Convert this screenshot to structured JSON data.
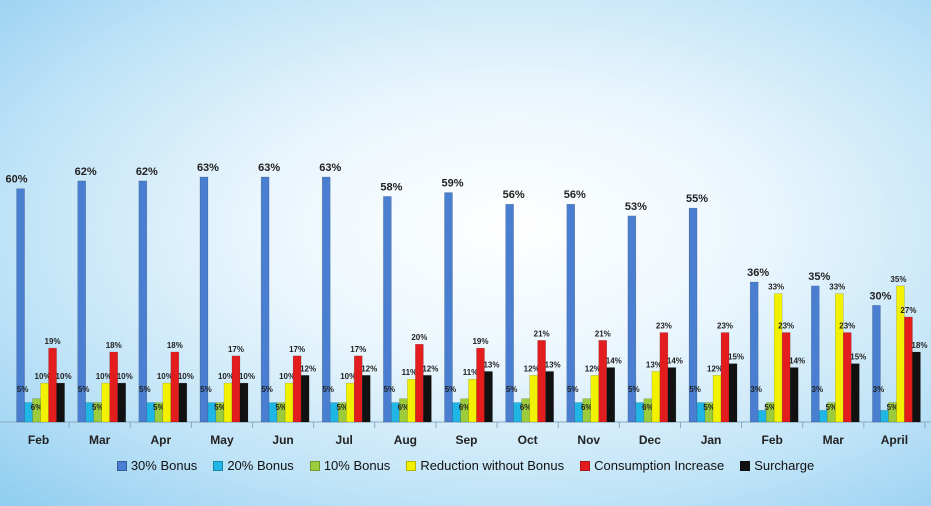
{
  "chart_data": {
    "type": "bar",
    "categories": [
      "Feb",
      "Mar",
      "Apr",
      "May",
      "Jun",
      "Jul",
      "Aug",
      "Sep",
      "Oct",
      "Nov",
      "Dec",
      "Jan",
      "Feb",
      "Mar",
      "April"
    ],
    "ylim": [
      0,
      70
    ],
    "grid": false,
    "legend_position": "bottom",
    "series": [
      {
        "name": "30% Bonus",
        "color": "#4a7ed0",
        "values": [
          60,
          62,
          62,
          63,
          63,
          63,
          58,
          59,
          56,
          56,
          53,
          55,
          36,
          35,
          30
        ]
      },
      {
        "name": "20% Bonus",
        "color": "#1fb6e6",
        "values": [
          5,
          5,
          5,
          5,
          5,
          5,
          5,
          5,
          5,
          5,
          5,
          5,
          3,
          3,
          3
        ]
      },
      {
        "name": "10% Bonus",
        "color": "#9ccc3c",
        "values": [
          6,
          5,
          5,
          5,
          5,
          5,
          6,
          6,
          6,
          6,
          6,
          5,
          5,
          5,
          5
        ]
      },
      {
        "name": "Reduction without Bonus",
        "color": "#f2f200",
        "values": [
          10,
          10,
          10,
          10,
          10,
          10,
          11,
          11,
          12,
          12,
          13,
          12,
          33,
          33,
          35
        ]
      },
      {
        "name": "Consumption Increase",
        "color": "#e31d1d",
        "values": [
          19,
          18,
          18,
          17,
          17,
          17,
          20,
          19,
          21,
          21,
          23,
          23,
          23,
          23,
          27
        ]
      },
      {
        "name": "Surcharge",
        "color": "#111111",
        "values": [
          10,
          10,
          10,
          10,
          12,
          12,
          12,
          13,
          13,
          14,
          14,
          15,
          14,
          15,
          18
        ]
      }
    ],
    "value_suffix": "%"
  }
}
